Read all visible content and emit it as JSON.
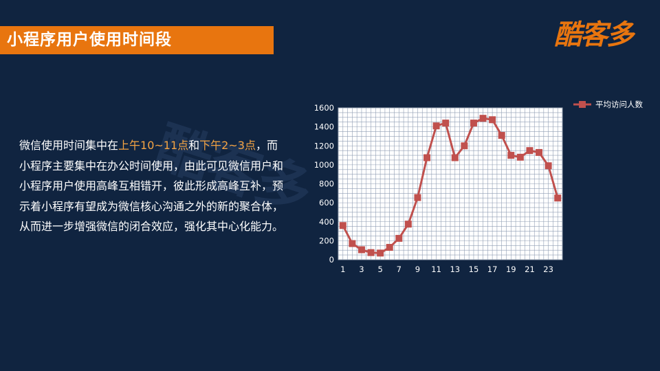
{
  "header": {
    "title": "小程序用户使用时间段"
  },
  "brand": {
    "logo_text": "酷客多",
    "watermark_text": "酷客多"
  },
  "description": {
    "part1": "微信使用时间集中在",
    "highlight1": "上午10~11点",
    "part2": "和",
    "highlight2": "下午2~3点",
    "part3": "，而小程序主要集中在办公时间使用，由此可见微信用户和小程序用户使用高峰互相错开，彼此形成高峰互补，预示着小程序有望成为微信核心沟通之外的新的聚合体，从而进一步增强微信的闭合效应，强化其中心化能力。"
  },
  "colors": {
    "background": "#102440",
    "accent": "#e8750f",
    "highlight": "#f5a443",
    "series": "#c0504d",
    "grid": "#c8d0dc",
    "plot_bg": "#ffffff"
  },
  "chart_data": {
    "type": "line",
    "x": [
      1,
      2,
      3,
      4,
      5,
      6,
      7,
      8,
      9,
      10,
      11,
      12,
      13,
      14,
      15,
      16,
      17,
      18,
      19,
      20,
      21,
      22,
      23,
      24
    ],
    "x_tick_labels": [
      "1",
      "3",
      "5",
      "7",
      "9",
      "11",
      "13",
      "15",
      "17",
      "19",
      "21",
      "23"
    ],
    "series": [
      {
        "name": "平均访问人数",
        "values": [
          360,
          170,
          105,
          75,
          70,
          130,
          225,
          375,
          655,
          1075,
          1410,
          1440,
          1075,
          1200,
          1440,
          1490,
          1475,
          1310,
          1100,
          1080,
          1150,
          1130,
          990,
          650
        ]
      }
    ],
    "ylim": [
      0,
      1600
    ],
    "y_ticks": [
      0,
      200,
      400,
      600,
      800,
      1000,
      1200,
      1400,
      1600
    ],
    "grid": true,
    "legend": "top-right"
  }
}
